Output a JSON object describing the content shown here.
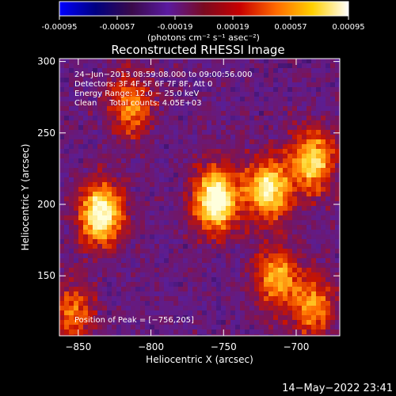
{
  "colorbar": {
    "tick_labels": [
      "-0.00095",
      "-0.00057",
      "-0.00019",
      "0.00019",
      "0.00057",
      "0.00095"
    ],
    "tick_values": [
      -0.00095,
      -0.00057,
      -0.00019,
      0.00019,
      0.00057,
      0.00095
    ],
    "range": [
      -0.00095,
      0.00095
    ],
    "units": "(photons cm⁻² s⁻¹ asec⁻²)",
    "colors": [
      "#0000ff",
      "#000080",
      "#3a0a4a",
      "#5a1aa0",
      "#7a0a20",
      "#c80000",
      "#ff6a00",
      "#ffd000",
      "#ffffff"
    ]
  },
  "chart_data": {
    "type": "heatmap",
    "title": "Reconstructed RHESSI Image",
    "xlabel": "Heliocentric X (arcsec)",
    "ylabel": "Heliocentric Y (arcsec)",
    "xlim": [
      -863,
      -670
    ],
    "ylim": [
      108,
      302
    ],
    "x_ticks": [
      -850,
      -800,
      -750,
      -700
    ],
    "y_ticks": [
      150,
      200,
      250,
      300
    ],
    "x_tick_labels": [
      "−850",
      "−800",
      "−750",
      "−700"
    ],
    "y_tick_labels": [
      "150",
      "200",
      "250",
      "300"
    ],
    "bright_regions": [
      {
        "x": -836,
        "y": 195,
        "level": 0.95
      },
      {
        "x": -757,
        "y": 205,
        "level": 1.0
      },
      {
        "x": -721,
        "y": 212,
        "level": 0.85
      },
      {
        "x": -690,
        "y": 232,
        "level": 0.75
      },
      {
        "x": -815,
        "y": 270,
        "level": 0.55
      },
      {
        "x": -715,
        "y": 150,
        "level": 0.6
      },
      {
        "x": -856,
        "y": 125,
        "level": 0.5
      },
      {
        "x": -690,
        "y": 130,
        "level": 0.55
      }
    ],
    "annotations": [
      "24−Jun−2013 08:59:08.000 to 09:00:56.000",
      "Detectors: 3F 4F 5F 6F 7F 8F, Att 0",
      "Energy Range: 12.0 − 25.0 keV",
      "Clean     Total counts: 4.05E+03"
    ],
    "peak_label": "Position of Peak = [−756,205]"
  },
  "footer": {
    "timestamp": "14−May−2022 23:41"
  }
}
